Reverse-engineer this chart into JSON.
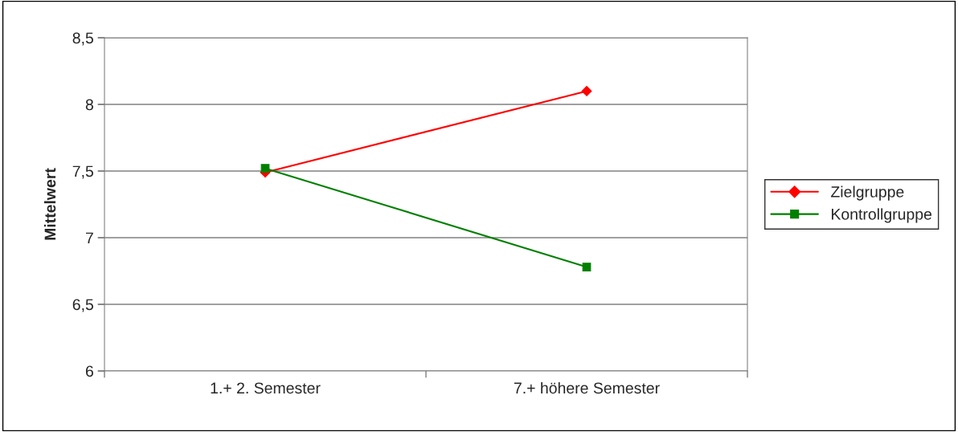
{
  "chart_data": {
    "type": "line",
    "ylabel": "Mittelwert",
    "categories": [
      "1.+ 2. Semester",
      "7.+ höhere Semester"
    ],
    "series": [
      {
        "name": "Zielgruppe",
        "color": "#ff0000",
        "marker": "diamond",
        "values": [
          7.49,
          8.1
        ]
      },
      {
        "name": "Kontrollgruppe",
        "color": "#008000",
        "marker": "square",
        "values": [
          7.52,
          6.78
        ]
      }
    ],
    "ylim": [
      6,
      8.5
    ],
    "yticks": [
      6,
      {
        "value": 6.5,
        "label": "6,5"
      },
      7,
      {
        "value": 7.5,
        "label": "7,5"
      },
      8,
      {
        "value": 8.5,
        "label": "8,5"
      }
    ],
    "grid": "y",
    "legend": "right"
  }
}
